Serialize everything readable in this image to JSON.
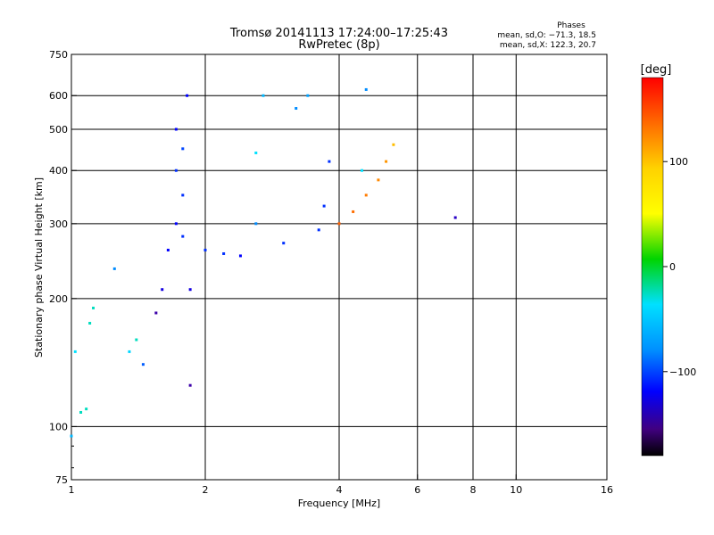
{
  "chart_data": {
    "type": "scatter",
    "title": "Tromsø 20141113 17:24:00–17:25:43",
    "subtitle": "RwPretec (8p)",
    "stats": {
      "heading": "Phases",
      "line_o": "mean, sd,O: −71.3, 18.5",
      "line_x": "mean, sd,X: 122.3, 20.7"
    },
    "xlabel": "Frequency [MHz]",
    "ylabel": "Stationary phase Virtual Height [km]",
    "x_scale": "log",
    "y_scale": "log",
    "xlim": [
      1,
      16
    ],
    "ylim": [
      75,
      750
    ],
    "x_ticks": [
      {
        "v": 1,
        "label": "1"
      },
      {
        "v": 2,
        "label": "2"
      },
      {
        "v": 4,
        "label": "4"
      },
      {
        "v": 6,
        "label": "6"
      },
      {
        "v": 8,
        "label": "8"
      },
      {
        "v": 10,
        "label": "10"
      },
      {
        "v": 16,
        "label": "16"
      }
    ],
    "y_ticks": [
      {
        "v": 75,
        "label": "75"
      },
      {
        "v": 100,
        "label": "100"
      },
      {
        "v": 200,
        "label": "200"
      },
      {
        "v": 300,
        "label": "300"
      },
      {
        "v": 400,
        "label": "400"
      },
      {
        "v": 500,
        "label": "500"
      },
      {
        "v": 600,
        "label": "600"
      },
      {
        "v": 750,
        "label": "750"
      }
    ],
    "grid_x": [
      2,
      4,
      6,
      8,
      10
    ],
    "grid_y": [
      100,
      200,
      300,
      400,
      500,
      600
    ],
    "colorbar": {
      "label": "[deg]",
      "range": [
        -180,
        180
      ],
      "ticks": [
        {
          "v": 100,
          "label": "100"
        },
        {
          "v": 0,
          "label": "0"
        },
        {
          "v": -100,
          "label": "−100"
        }
      ]
    },
    "series": [
      {
        "points": [
          [
            1.0,
            95,
            -60
          ],
          [
            1.05,
            108,
            -30
          ],
          [
            1.08,
            110,
            -30
          ],
          [
            1.02,
            150,
            -40
          ],
          [
            1.1,
            175,
            -30
          ],
          [
            1.12,
            190,
            -30
          ],
          [
            1.25,
            235,
            -80
          ],
          [
            1.35,
            150,
            -45
          ],
          [
            1.4,
            160,
            -30
          ],
          [
            1.45,
            140,
            -90
          ],
          [
            1.55,
            185,
            -140
          ],
          [
            1.6,
            210,
            -120
          ],
          [
            1.65,
            260,
            -110
          ],
          [
            1.72,
            300,
            -110
          ],
          [
            1.72,
            400,
            -100
          ],
          [
            1.72,
            500,
            -110
          ],
          [
            1.78,
            280,
            -100
          ],
          [
            1.78,
            350,
            -100
          ],
          [
            1.78,
            450,
            -95
          ],
          [
            1.82,
            600,
            -110
          ],
          [
            1.85,
            210,
            -120
          ],
          [
            1.85,
            125,
            -140
          ],
          [
            2.0,
            260,
            -100
          ],
          [
            2.2,
            255,
            -100
          ],
          [
            2.4,
            252,
            -110
          ],
          [
            2.6,
            300,
            -80
          ],
          [
            2.6,
            440,
            -40
          ],
          [
            2.7,
            600,
            -60
          ],
          [
            3.0,
            270,
            -100
          ],
          [
            3.2,
            560,
            -80
          ],
          [
            3.4,
            600,
            -70
          ],
          [
            3.6,
            290,
            -100
          ],
          [
            3.7,
            330,
            -100
          ],
          [
            3.8,
            420,
            -100
          ],
          [
            4.0,
            300,
            145
          ],
          [
            4.3,
            320,
            140
          ],
          [
            4.6,
            350,
            135
          ],
          [
            4.9,
            380,
            130
          ],
          [
            5.1,
            420,
            125
          ],
          [
            5.3,
            460,
            110
          ],
          [
            4.5,
            400,
            -40
          ],
          [
            4.6,
            620,
            -80
          ],
          [
            7.3,
            310,
            -130
          ]
        ]
      }
    ]
  }
}
